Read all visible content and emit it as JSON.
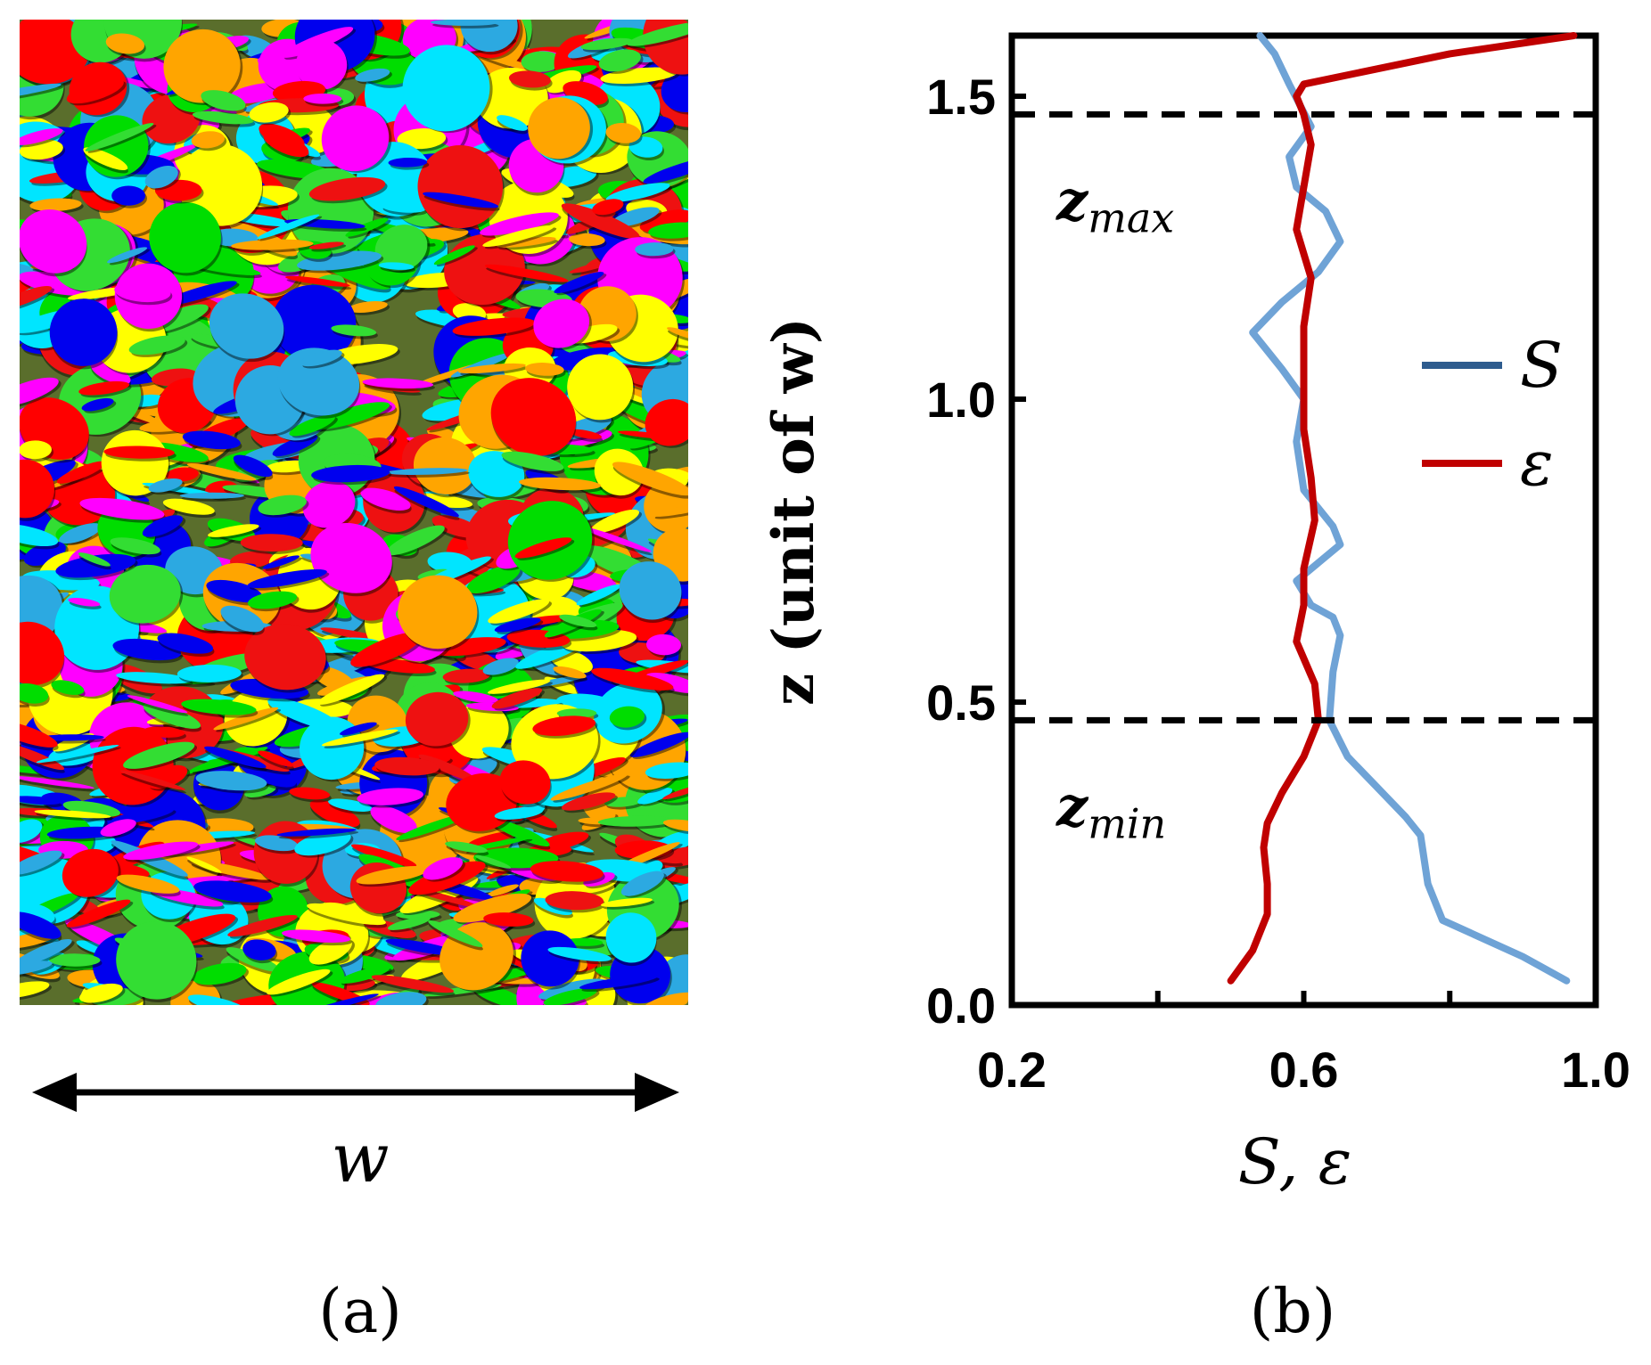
{
  "panels": {
    "a": {
      "caption": "(a)",
      "width_label": "w"
    },
    "b": {
      "caption": "(b)"
    }
  },
  "chart_data": {
    "type": "line",
    "xlabel": "S, ε",
    "ylabel": "z (unit of w)",
    "xlim": [
      0.2,
      1.0
    ],
    "ylim": [
      0.0,
      1.6
    ],
    "x_ticks": [
      "0.2",
      "0.6",
      "1.0"
    ],
    "y_ticks": [
      "0.0",
      "0.5",
      "1.0",
      "1.5"
    ],
    "legend": {
      "placement": "center-right",
      "entries": [
        "S",
        "ε"
      ]
    },
    "series": [
      {
        "name": "S",
        "color": "#6fa3d6",
        "points": [
          [
            0.96,
            0.04
          ],
          [
            0.9,
            0.08
          ],
          [
            0.79,
            0.14
          ],
          [
            0.77,
            0.2
          ],
          [
            0.76,
            0.28
          ],
          [
            0.74,
            0.31
          ],
          [
            0.7,
            0.36
          ],
          [
            0.66,
            0.41
          ],
          [
            0.635,
            0.47
          ],
          [
            0.64,
            0.55
          ],
          [
            0.65,
            0.61
          ],
          [
            0.64,
            0.64
          ],
          [
            0.61,
            0.66
          ],
          [
            0.59,
            0.7
          ],
          [
            0.62,
            0.73
          ],
          [
            0.65,
            0.76
          ],
          [
            0.64,
            0.79
          ],
          [
            0.6,
            0.85
          ],
          [
            0.59,
            0.93
          ],
          [
            0.6,
            1.0
          ],
          [
            0.57,
            1.05
          ],
          [
            0.53,
            1.11
          ],
          [
            0.57,
            1.16
          ],
          [
            0.62,
            1.21
          ],
          [
            0.65,
            1.26
          ],
          [
            0.63,
            1.31
          ],
          [
            0.59,
            1.35
          ],
          [
            0.58,
            1.4
          ],
          [
            0.61,
            1.45
          ],
          [
            0.58,
            1.52
          ],
          [
            0.56,
            1.57
          ],
          [
            0.54,
            1.6
          ]
        ]
      },
      {
        "name": "ε",
        "color": "#c00000",
        "points": [
          [
            0.5,
            0.04
          ],
          [
            0.53,
            0.09
          ],
          [
            0.55,
            0.15
          ],
          [
            0.55,
            0.2
          ],
          [
            0.545,
            0.26
          ],
          [
            0.55,
            0.3
          ],
          [
            0.57,
            0.35
          ],
          [
            0.6,
            0.41
          ],
          [
            0.62,
            0.47
          ],
          [
            0.615,
            0.53
          ],
          [
            0.59,
            0.6
          ],
          [
            0.6,
            0.66
          ],
          [
            0.6,
            0.72
          ],
          [
            0.615,
            0.8
          ],
          [
            0.61,
            0.87
          ],
          [
            0.6,
            0.95
          ],
          [
            0.6,
            1.05
          ],
          [
            0.6,
            1.12
          ],
          [
            0.61,
            1.2
          ],
          [
            0.59,
            1.28
          ],
          [
            0.6,
            1.35
          ],
          [
            0.61,
            1.42
          ],
          [
            0.6,
            1.47
          ],
          [
            0.59,
            1.5
          ],
          [
            0.6,
            1.52
          ],
          [
            0.68,
            1.54
          ],
          [
            0.8,
            1.57
          ],
          [
            0.97,
            1.6
          ]
        ]
      }
    ],
    "reference_lines": [
      {
        "name": "z_max",
        "y": 1.47,
        "label": "z",
        "subscript": "max",
        "style": "dashed"
      },
      {
        "name": "z_min",
        "y": 0.47,
        "label": "z",
        "subscript": "min",
        "style": "dashed"
      }
    ]
  }
}
